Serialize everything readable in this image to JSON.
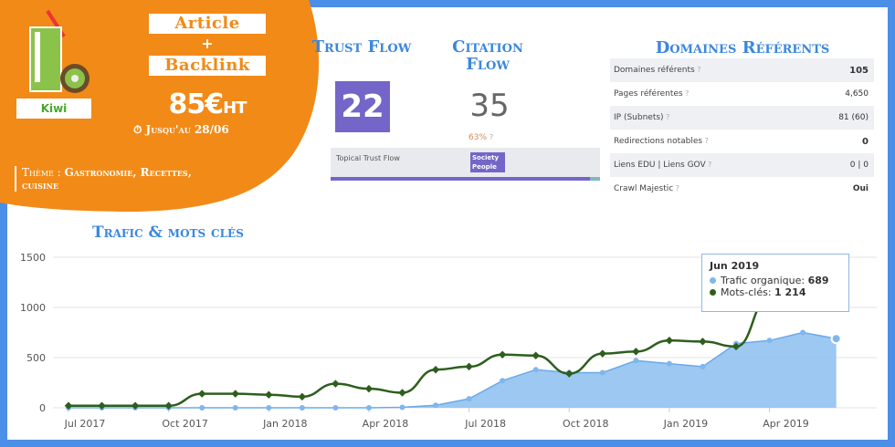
{
  "promo": {
    "product": "Kiwi",
    "line1": "Article",
    "plus": "+",
    "line2": "Backlink",
    "price": "85€",
    "price_suffix": "HT",
    "until": "Jusqu'au 28/06",
    "theme_label": "Thème :",
    "theme_value": "Gastronomie, Recettes, cuisine"
  },
  "metrics": {
    "trust_flow_title": "Trust Flow",
    "trust_flow_value": "22",
    "citation_flow_title": "Citation Flow",
    "citation_flow_value": "35",
    "citation_ratio": "63%",
    "topical_label": "Topical Trust Flow",
    "topical_badge": "Society People"
  },
  "domaines": {
    "title": "Domaines Référents",
    "rows": [
      {
        "label": "Domaines référents",
        "value": "105"
      },
      {
        "label": "Pages référentes",
        "value": "4,650"
      },
      {
        "label": "IP (Subnets)",
        "value": "81 (60)"
      },
      {
        "label": "Redirections notables",
        "value": "0"
      },
      {
        "label": "Liens EDU | Liens GOV",
        "value": "0 | 0"
      },
      {
        "label": "Crawl Majestic",
        "value": "Oui"
      }
    ]
  },
  "colors": {
    "orange": "#f28a17",
    "blue": "#3b87dc",
    "purple": "#7466c8",
    "green": "#2e5e1e",
    "area": "#7fb6ee"
  },
  "chart_data": {
    "type": "area",
    "title": "Trafic & mots clés",
    "x": [
      "Jul 2017",
      "Aug 2017",
      "Sep 2017",
      "Oct 2017",
      "Nov 2017",
      "Dec 2017",
      "Jan 2018",
      "Feb 2018",
      "Mar 2018",
      "Apr 2018",
      "May 2018",
      "Jun 2018",
      "Jul 2018",
      "Aug 2018",
      "Sep 2018",
      "Oct 2018",
      "Nov 2018",
      "Dec 2018",
      "Jan 2019",
      "Feb 2019",
      "Mar 2019",
      "Apr 2019",
      "May 2019",
      "Jun 2019"
    ],
    "x_tick_labels": [
      "Jul 2017",
      "Oct 2017",
      "Jan 2018",
      "Apr 2018",
      "Jul 2018",
      "Oct 2018",
      "Jan 2019",
      "Apr 2019"
    ],
    "y_ticks": [
      0,
      500,
      1000,
      1500
    ],
    "ylim": [
      0,
      1600
    ],
    "series": [
      {
        "name": "Trafic organique",
        "type": "area",
        "values": [
          0,
          0,
          0,
          0,
          0,
          0,
          0,
          0,
          0,
          0,
          5,
          25,
          90,
          270,
          380,
          350,
          350,
          470,
          440,
          410,
          640,
          670,
          750,
          689
        ]
      },
      {
        "name": "Mots-clés",
        "type": "line",
        "values": [
          20,
          20,
          20,
          20,
          140,
          140,
          130,
          110,
          240,
          190,
          150,
          380,
          410,
          530,
          520,
          340,
          540,
          560,
          670,
          660,
          610,
          1100,
          1210,
          1214
        ]
      }
    ],
    "tooltip": {
      "title": "Jun 2019",
      "traffic_label": "Trafic organique:",
      "traffic_value": "689",
      "keywords_label": "Mots-clés:",
      "keywords_value": "1 214"
    }
  }
}
